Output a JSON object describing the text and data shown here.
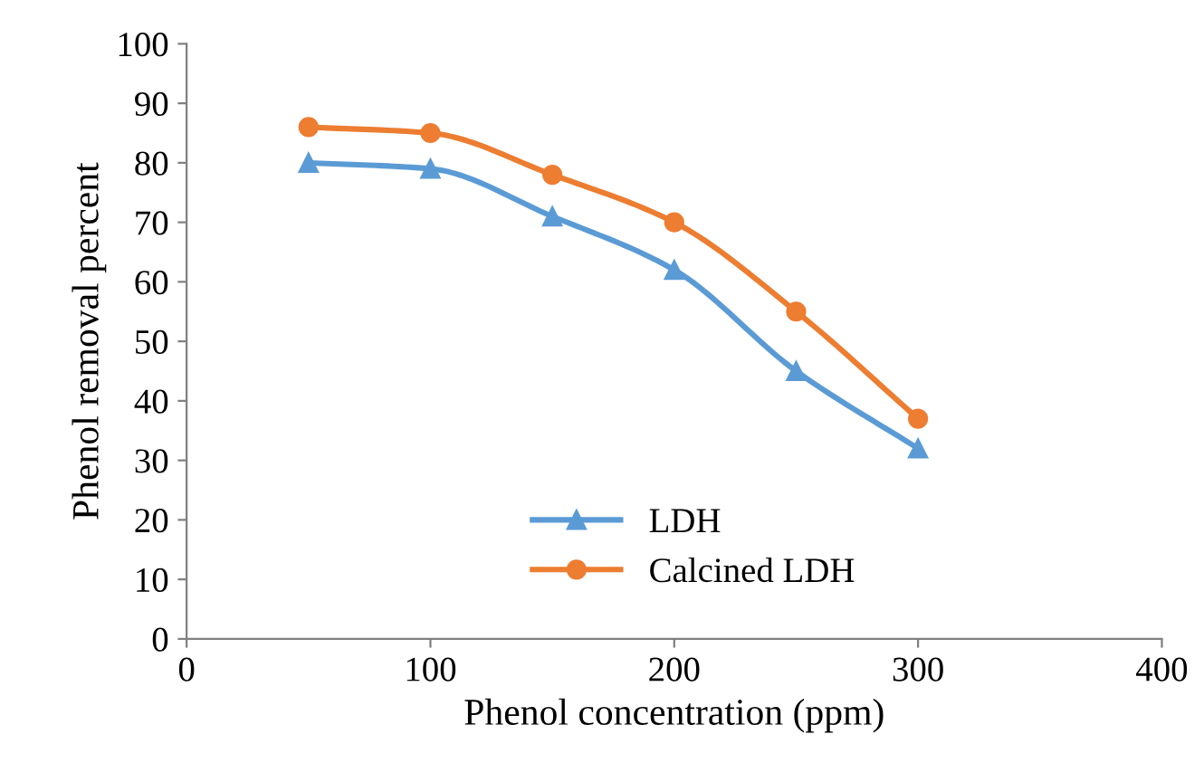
{
  "chart_data": {
    "type": "line",
    "xlabel": "Phenol concentration (ppm)",
    "ylabel": "Phenol removal percent",
    "x": [
      50,
      100,
      150,
      200,
      250,
      300
    ],
    "series": [
      {
        "name": "LDH",
        "color": "#5b9bd5",
        "marker": "triangle",
        "values": [
          80,
          79,
          71,
          62,
          45,
          32
        ]
      },
      {
        "name": "Calcined LDH",
        "color": "#ed7d31",
        "marker": "circle",
        "values": [
          86,
          85,
          78,
          70,
          55,
          37
        ]
      }
    ],
    "xlim": [
      0,
      400
    ],
    "xticks": [
      0,
      100,
      200,
      300,
      400
    ],
    "ylim": [
      0,
      100
    ],
    "yticks": [
      0,
      10,
      20,
      30,
      40,
      50,
      60,
      70,
      80,
      90,
      100
    ],
    "grid": false,
    "legend": "bottom",
    "line_style": "solid"
  }
}
